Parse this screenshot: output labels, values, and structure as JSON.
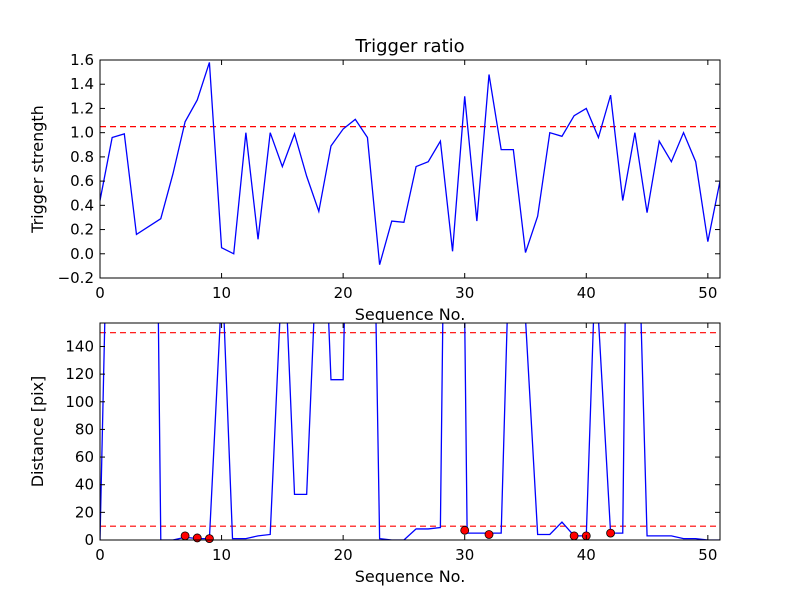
{
  "chart_data": [
    {
      "type": "line",
      "title": "Trigger ratio",
      "xlabel": "Sequence No.",
      "ylabel": "Trigger strength",
      "xlim": [
        0,
        51
      ],
      "ylim": [
        -0.2,
        1.6
      ],
      "xticks": [
        0,
        10,
        20,
        30,
        40,
        50
      ],
      "xtick_labels": [
        "0",
        "10",
        "20",
        "30",
        "40",
        "50"
      ],
      "yticks": [
        -0.2,
        0.0,
        0.2,
        0.4,
        0.6,
        0.8,
        1.0,
        1.2,
        1.4,
        1.6
      ],
      "ytick_labels": [
        "−0.2",
        "0.0",
        "0.2",
        "0.4",
        "0.6",
        "0.8",
        "1.0",
        "1.2",
        "1.4",
        "1.6"
      ],
      "grid": false,
      "series": [
        {
          "color": "#0000ff",
          "x": [
            0,
            1,
            2,
            3,
            5,
            6,
            7,
            8,
            9,
            10,
            11,
            12,
            13,
            14,
            15,
            16,
            17,
            18,
            19,
            20,
            21,
            22,
            23,
            24,
            25,
            26,
            27,
            28,
            29,
            30,
            31,
            32,
            33,
            34,
            35,
            36,
            37,
            38,
            39,
            40,
            41,
            42,
            43,
            44,
            45,
            46,
            47,
            48,
            49,
            50,
            51
          ],
          "y": [
            0.44,
            0.96,
            0.99,
            0.16,
            0.29,
            0.66,
            1.09,
            1.27,
            1.58,
            0.05,
            0.0,
            1.0,
            0.12,
            1.0,
            0.72,
            0.99,
            0.64,
            0.35,
            0.89,
            1.03,
            1.11,
            0.96,
            -0.09,
            0.27,
            0.26,
            0.72,
            0.76,
            0.93,
            0.02,
            1.3,
            0.27,
            1.48,
            0.86,
            0.86,
            0.01,
            0.31,
            1.0,
            0.97,
            1.14,
            1.2,
            0.96,
            1.31,
            0.44,
            1.0,
            0.34,
            0.93,
            0.76,
            1.0,
            0.76,
            0.1,
            0.6
          ]
        }
      ],
      "reference_lines": [
        {
          "y": 1.05,
          "color": "#ff0000",
          "style": "dashed"
        }
      ]
    },
    {
      "type": "line",
      "title": "",
      "xlabel": "Sequence No.",
      "ylabel": "Distance [pix]",
      "xlim": [
        0,
        51
      ],
      "ylim": [
        0,
        157
      ],
      "xticks": [
        0,
        10,
        20,
        30,
        40,
        50
      ],
      "xtick_labels": [
        "0",
        "10",
        "20",
        "30",
        "40",
        "50"
      ],
      "yticks": [
        0,
        20,
        40,
        60,
        80,
        100,
        120,
        140
      ],
      "ytick_labels": [
        "0",
        "20",
        "40",
        "60",
        "80",
        "100",
        "120",
        "140"
      ],
      "grid": false,
      "series": [
        {
          "color": "#0000ff",
          "x": [
            0,
            0.4,
            4.8,
            5,
            6,
            7,
            8,
            9,
            9.9,
            10.2,
            10.9,
            11,
            12,
            13,
            14,
            14.8,
            15.4,
            16,
            17,
            17.6,
            18,
            18.8,
            19,
            20,
            20.1,
            21,
            22,
            22.7,
            23,
            24,
            25,
            26,
            27,
            28,
            28.2,
            30,
            30.2,
            31,
            33,
            33.5,
            35,
            36,
            37,
            38,
            39,
            40,
            40.6,
            41,
            42,
            43,
            43.2,
            44.5,
            45,
            46,
            47,
            48,
            49,
            50,
            51
          ],
          "y": [
            0,
            160,
            160,
            0,
            0,
            2,
            1,
            1,
            160,
            160,
            1,
            1,
            1,
            3,
            4,
            160,
            160,
            33,
            33,
            160,
            160,
            160,
            116,
            116,
            160,
            160,
            160,
            160,
            1,
            0,
            0,
            8,
            8,
            9,
            160,
            160,
            5,
            5,
            5,
            160,
            160,
            4,
            4,
            13,
            3,
            3,
            160,
            160,
            5,
            5,
            160,
            160,
            3,
            3,
            3,
            1,
            1,
            0,
            0
          ]
        }
      ],
      "markers": {
        "color": "#ff0000",
        "x": [
          7,
          8,
          9,
          30,
          32,
          39,
          40,
          42
        ],
        "y": [
          3,
          1.5,
          1,
          7,
          4,
          3,
          3,
          5
        ]
      },
      "reference_lines": [
        {
          "y": 150,
          "color": "#ff0000",
          "style": "dashed"
        },
        {
          "y": 10,
          "color": "#ff0000",
          "style": "dashed"
        }
      ]
    }
  ]
}
